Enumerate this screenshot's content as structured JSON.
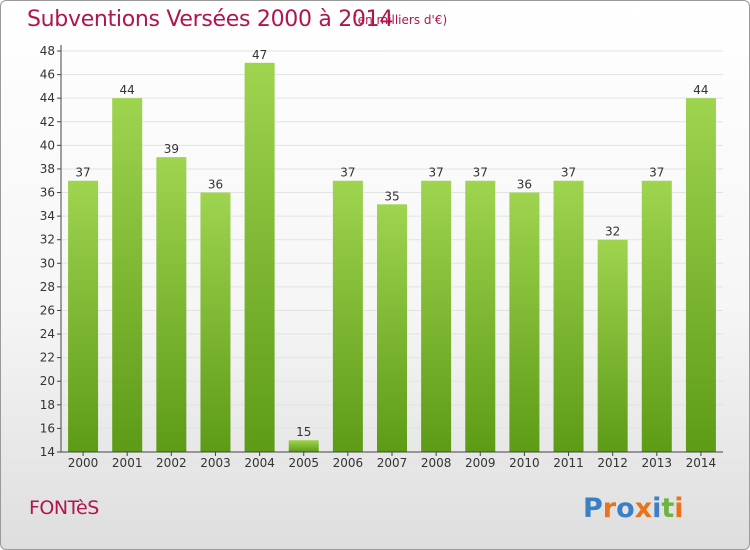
{
  "header": {
    "title": "Subventions Versées 2000 à 2014",
    "unit": "(en milliers d'€)"
  },
  "footer": {
    "commune": "FONTèS",
    "brand": "Proxiti"
  },
  "colors": {
    "title": "#b0154f",
    "bar_top": "#9fd44f",
    "bar_bottom": "#5d9b17",
    "axis": "#444444",
    "grid": "#e3e3e3"
  },
  "chart_data": {
    "type": "bar",
    "categories": [
      "2000",
      "2001",
      "2002",
      "2003",
      "2004",
      "2005",
      "2006",
      "2007",
      "2008",
      "2009",
      "2010",
      "2011",
      "2012",
      "2013",
      "2014"
    ],
    "values": [
      37,
      44,
      39,
      36,
      47,
      15,
      37,
      35,
      37,
      37,
      36,
      37,
      32,
      37,
      44
    ],
    "ylim": [
      14,
      48
    ],
    "yticks": [
      14,
      16,
      18,
      20,
      22,
      24,
      26,
      28,
      30,
      32,
      34,
      36,
      38,
      40,
      42,
      44,
      46,
      48
    ],
    "grid": true,
    "legend": "none"
  }
}
